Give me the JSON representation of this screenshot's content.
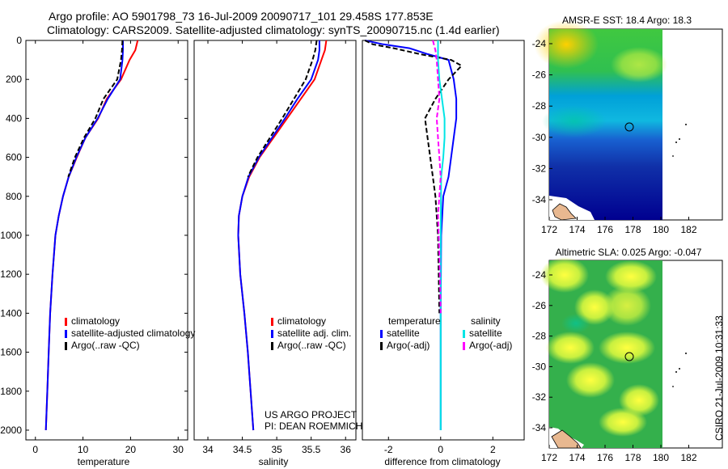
{
  "header": {
    "title_line1": "Argo profile: AO 5901798_73 16-Jul-2009 20090717_101 29.458S 177.853E",
    "title_line2": "Climatology: CARS2009. Satellite-adjusted climatology: synTS_20090715.nc (1.4d earlier)"
  },
  "colors": {
    "climatology": "#ff0000",
    "satellite": "#0000ff",
    "argo": "#000000",
    "salinity_satellite": "#00e5e5",
    "salinity_argo": "#ff00ff"
  },
  "panel_temperature": {
    "xlabel": "temperature",
    "xticks": [
      "0",
      "10",
      "20",
      "30"
    ],
    "legend": [
      "climatology",
      "satellite-adjusted climatology",
      "Argo(..raw -QC)"
    ]
  },
  "panel_salinity": {
    "xlabel": "salinity",
    "xticks": [
      "34",
      "34.5",
      "35",
      "35.5",
      "36"
    ],
    "legend": [
      "climatology",
      "satellite adj. clim.",
      "Argo(..raw -QC)"
    ],
    "credit_line1": "US ARGO PROJECT",
    "credit_line2": "PI: DEAN ROEMMICH"
  },
  "panel_difference": {
    "xlabel": "difference from climatology",
    "xticks": [
      "-2",
      "0",
      "2"
    ],
    "legend_temp_title": "temperature",
    "legend_temp": [
      "satellite",
      "Argo(-adj)"
    ],
    "legend_sal_title": "salinity",
    "legend_sal": [
      "satellite",
      "Argo(-adj)"
    ]
  },
  "depth_axis": {
    "ticks": [
      "0",
      "200",
      "400",
      "600",
      "800",
      "1000",
      "1200",
      "1400",
      "1600",
      "1800",
      "2000"
    ]
  },
  "map_sst": {
    "title": "AMSR-E SST: 18.4 Argo: 18.3",
    "yticks": [
      "-24",
      "-26",
      "-28",
      "-30",
      "-32",
      "-34"
    ],
    "xticks": [
      "172",
      "174",
      "176",
      "178",
      "180",
      "182"
    ]
  },
  "map_sla": {
    "title": "Altimetric SLA: 0.025 Argo: -0.047",
    "yticks": [
      "-24",
      "-26",
      "-28",
      "-30",
      "-32",
      "-34"
    ],
    "xticks": [
      "172",
      "174",
      "176",
      "178",
      "180",
      "182"
    ]
  },
  "side_label": "CSIRO 21-Jul-2009 10:31:33",
  "chart_data": [
    {
      "type": "line",
      "xlabel": "temperature",
      "ylabel": "",
      "xlim": [
        -2,
        32
      ],
      "ylim": [
        2050,
        0
      ],
      "series": [
        {
          "name": "climatology",
          "color": "#ff0000",
          "x": [
            21.5,
            21.0,
            19.8,
            18.0,
            15.0,
            13.2,
            10.5,
            8.7,
            7.0,
            5.8,
            4.9,
            4.2,
            3.6,
            3.1,
            2.8,
            2.5,
            2.35,
            2.2
          ],
          "y": [
            0,
            50,
            100,
            200,
            300,
            400,
            500,
            600,
            700,
            800,
            900,
            1000,
            1200,
            1400,
            1600,
            1800,
            1900,
            2000
          ]
        },
        {
          "name": "satellite-adjusted climatology",
          "color": "#0000ff",
          "x": [
            18.4,
            18.4,
            18.3,
            17.8,
            15.2,
            13.1,
            10.5,
            8.6,
            7.0,
            5.8,
            4.9,
            4.2,
            3.6,
            3.1,
            2.8,
            2.5,
            2.35,
            2.2
          ],
          "y": [
            0,
            50,
            100,
            200,
            300,
            400,
            500,
            600,
            700,
            800,
            900,
            1000,
            1200,
            1400,
            1600,
            1800,
            1900,
            2000
          ]
        },
        {
          "name": "Argo(..raw -QC)",
          "color": "#000000",
          "dashed": true,
          "x": [
            18.3,
            18.2,
            18.0,
            17.2,
            14.3,
            12.6,
            10.2,
            8.3,
            6.9
          ],
          "y": [
            0,
            50,
            100,
            200,
            300,
            400,
            500,
            600,
            700
          ]
        }
      ]
    },
    {
      "type": "line",
      "xlabel": "salinity",
      "ylabel": "",
      "xlim": [
        33.8,
        36.15
      ],
      "ylim": [
        2050,
        0
      ],
      "series": [
        {
          "name": "climatology",
          "color": "#ff0000",
          "x": [
            35.72,
            35.7,
            35.65,
            35.55,
            35.35,
            35.15,
            34.95,
            34.75,
            34.6,
            34.5,
            34.45,
            34.44,
            34.47,
            34.53,
            34.58,
            34.62,
            34.64,
            34.66
          ],
          "y": [
            0,
            50,
            100,
            200,
            300,
            400,
            500,
            600,
            700,
            800,
            900,
            1000,
            1200,
            1400,
            1600,
            1800,
            1900,
            2000
          ]
        },
        {
          "name": "satellite adj. clim.",
          "color": "#0000ff",
          "x": [
            35.62,
            35.62,
            35.6,
            35.5,
            35.3,
            35.12,
            34.93,
            34.74,
            34.59,
            34.5,
            34.45,
            34.44,
            34.47,
            34.53,
            34.58,
            34.62,
            34.64,
            34.66
          ],
          "y": [
            0,
            50,
            100,
            200,
            300,
            400,
            500,
            600,
            700,
            800,
            900,
            1000,
            1200,
            1400,
            1600,
            1800,
            1900,
            2000
          ]
        },
        {
          "name": "Argo(..raw -QC)",
          "color": "#000000",
          "dashed": true,
          "x": [
            35.58,
            35.56,
            35.52,
            35.42,
            35.25,
            35.08,
            34.9,
            34.72,
            34.58
          ],
          "y": [
            0,
            50,
            100,
            200,
            300,
            400,
            500,
            600,
            700
          ]
        }
      ]
    },
    {
      "type": "line",
      "xlabel": "difference from climatology",
      "ylabel": "",
      "xlim": [
        -3.0,
        3.2
      ],
      "ylim": [
        2050,
        0
      ],
      "series": [
        {
          "group": "temperature",
          "name": "satellite",
          "color": "#0000ff",
          "x": [
            -2.9,
            -2.2,
            -1.2,
            -0.5,
            0.3,
            0.5,
            0.6,
            0.6,
            0.5,
            0.4,
            0.3,
            0.1,
            0.02,
            0.0,
            0.0,
            0.0
          ],
          "y": [
            0,
            20,
            40,
            70,
            100,
            200,
            300,
            400,
            500,
            600,
            700,
            800,
            1000,
            1400,
            1800,
            2000
          ]
        },
        {
          "group": "temperature",
          "name": "Argo(-adj)",
          "color": "#000000",
          "dashed": true,
          "x": [
            -2.9,
            -2.6,
            -1.8,
            -0.8,
            0.4,
            0.8,
            0.3,
            -0.2,
            -0.6,
            -0.5,
            -0.4,
            -0.3,
            -0.2,
            -0.1,
            -0.05
          ],
          "y": [
            0,
            20,
            40,
            70,
            100,
            130,
            200,
            300,
            400,
            500,
            600,
            700,
            800,
            1000,
            1400
          ]
        },
        {
          "group": "salinity",
          "name": "satellite",
          "color": "#00e5e5",
          "x": [
            -0.1,
            -0.1,
            -0.1,
            -0.05,
            0.05,
            0.15,
            0.15,
            0.1,
            0.02,
            0.0,
            0.0,
            0.0
          ],
          "y": [
            0,
            50,
            100,
            200,
            300,
            400,
            500,
            600,
            700,
            1000,
            1600,
            2000
          ]
        },
        {
          "group": "salinity",
          "name": "Argo(-adj)",
          "color": "#ff00ff",
          "dashed": true,
          "x": [
            -0.3,
            -0.2,
            -0.15,
            -0.1,
            -0.05,
            -0.15,
            -0.1,
            -0.05,
            0.0,
            -0.1,
            -0.05,
            0.0
          ],
          "y": [
            0,
            50,
            100,
            200,
            300,
            400,
            500,
            600,
            700,
            900,
            1100,
            1400
          ]
        }
      ]
    }
  ]
}
